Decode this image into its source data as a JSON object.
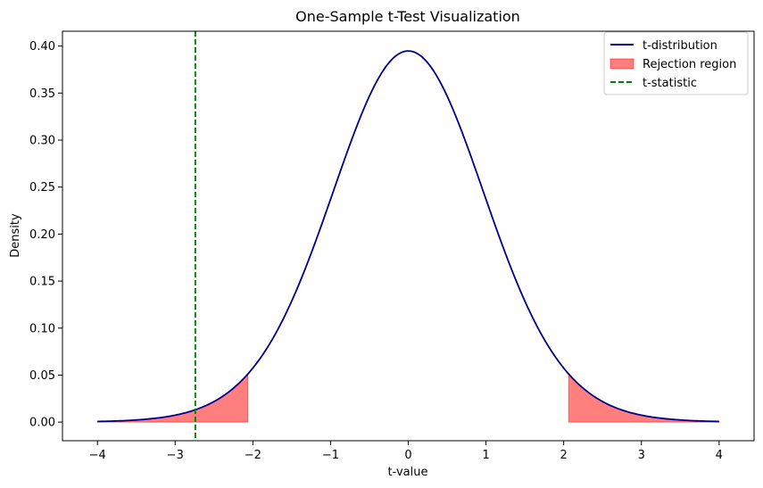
{
  "chart_data": {
    "type": "line",
    "title": "One-Sample t-Test Visualization",
    "xlabel": "t-value",
    "ylabel": "Density",
    "xlim": [
      -4.45,
      4.45
    ],
    "ylim": [
      -0.0198,
      0.4158
    ],
    "xticks": [
      -4,
      -3,
      -2,
      -1,
      0,
      1,
      2,
      3,
      4
    ],
    "xtick_labels": [
      "−4",
      "−3",
      "−2",
      "−1",
      "0",
      "1",
      "2",
      "3",
      "4"
    ],
    "yticks": [
      0.0,
      0.05,
      0.1,
      0.15,
      0.2,
      0.25,
      0.3,
      0.35,
      0.4
    ],
    "ytick_labels": [
      "0.00",
      "0.05",
      "0.10",
      "0.15",
      "0.20",
      "0.25",
      "0.30",
      "0.35",
      "0.40"
    ],
    "grid": false,
    "legend_position": "top-right",
    "series": [
      {
        "name": "t-distribution",
        "kind": "line",
        "color": "#00008b",
        "x": [
          -4.0,
          -3.75,
          -3.5,
          -3.25,
          -3.0,
          -2.75,
          -2.5,
          -2.25,
          -2.0,
          -1.75,
          -1.5,
          -1.25,
          -1.0,
          -0.75,
          -0.5,
          -0.25,
          0.0,
          0.25,
          0.5,
          0.75,
          1.0,
          1.25,
          1.5,
          1.75,
          2.0,
          2.25,
          2.5,
          2.75,
          3.0,
          3.25,
          3.5,
          3.75,
          4.0
        ],
        "y": [
          0.0012,
          0.002,
          0.0032,
          0.0052,
          0.0082,
          0.0126,
          0.0192,
          0.0285,
          0.0564,
          0.0874,
          0.1285,
          0.178,
          0.2323,
          0.2895,
          0.3432,
          0.381,
          0.395,
          0.381,
          0.3432,
          0.2895,
          0.2323,
          0.178,
          0.1285,
          0.0874,
          0.0564,
          0.0285,
          0.0192,
          0.0126,
          0.0082,
          0.0052,
          0.0032,
          0.002,
          0.0012
        ]
      },
      {
        "name": "Rejection region",
        "kind": "area",
        "color": "#ff0000",
        "opacity": 0.5,
        "critical_value": 2.064
      },
      {
        "name": "t-statistic",
        "kind": "vline",
        "color": "#008000",
        "linestyle": "dashed",
        "x": -2.74
      }
    ]
  }
}
